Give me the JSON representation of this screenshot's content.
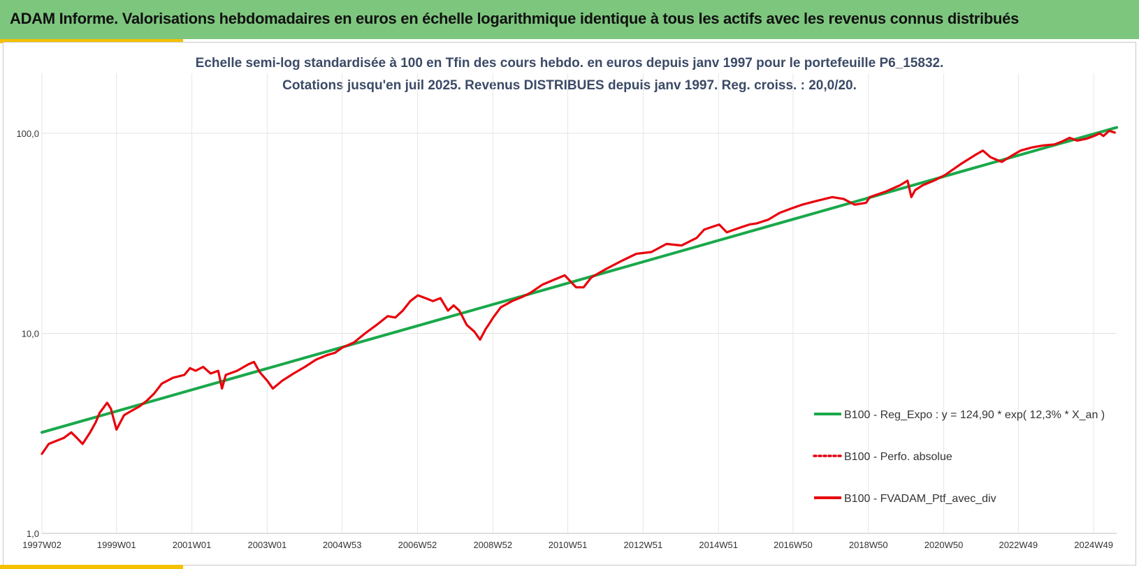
{
  "header": {
    "title": "ADAM Informe. Valorisations hebdomadaires en euros en échelle logarithmique identique à tous les actifs avec les revenus connus distribués"
  },
  "colors": {
    "header_band": "#7dc67e",
    "accent": "#f5c000",
    "regression": "#1aa84b",
    "portfolio": "#e8000b",
    "subtitle": "#3b4a66"
  },
  "chart_data": {
    "type": "line",
    "title_line1": "Echelle semi-log standardisée à 100 en Tfin des cours hebdo. en euros depuis janv 1997 pour le portefeuille P6_15832.",
    "title_line2": "Cotations jusqu'en juil 2025. Revenus DISTRIBUES depuis janv 1997. Reg. croiss. : 20,0/20.",
    "y_scale": "log",
    "ylim": [
      1,
      110
    ],
    "y_ticks": [
      1,
      10,
      100
    ],
    "y_tick_labels": [
      "1,0",
      "10,0",
      "100,0"
    ],
    "xlim": [
      1997.02,
      2025.55
    ],
    "x_ticks": [
      1997.02,
      1999.0,
      2001.0,
      2003.0,
      2004.99,
      2006.99,
      2008.99,
      2010.98,
      2012.98,
      2014.98,
      2016.96,
      2018.96,
      2020.96,
      2022.94,
      2024.94
    ],
    "x_tick_labels": [
      "1997W02",
      "1999W01",
      "2001W01",
      "2003W01",
      "2004W53",
      "2006W52",
      "2008W52",
      "2010W51",
      "2012W51",
      "2014W51",
      "2016W50",
      "2018W50",
      "2020W50",
      "2022W49",
      "2024W49"
    ],
    "grid": true,
    "legend_position": "bottom-right",
    "series": [
      {
        "name": "B100 - Reg_Expo : y = 124,90 * exp( 12,3% *  X_an )",
        "style": "solid",
        "color": "#1aa84b",
        "x": [
          1997.02,
          2025.55
        ],
        "y": [
          3.2,
          107
        ]
      },
      {
        "name": "B100 - Perfo. absolue",
        "style": "dotted",
        "color": "#e8000b",
        "x": [],
        "y": []
      },
      {
        "name": "B100 - FVADAM_Ptf_avec_div",
        "style": "solid",
        "color": "#e8000b",
        "x": [
          1997.02,
          1997.2,
          1997.4,
          1997.6,
          1997.8,
          1997.95,
          1998.1,
          1998.3,
          1998.45,
          1998.55,
          1998.75,
          1998.85,
          1999.0,
          1999.2,
          1999.4,
          1999.6,
          1999.8,
          2000.0,
          2000.2,
          2000.5,
          2000.8,
          2000.95,
          2001.1,
          2001.3,
          2001.5,
          2001.7,
          2001.8,
          2001.9,
          2002.2,
          2002.5,
          2002.65,
          2002.8,
          2003.0,
          2003.15,
          2003.4,
          2003.7,
          2004.0,
          2004.3,
          2004.6,
          2004.8,
          2005.0,
          2005.3,
          2005.6,
          2005.9,
          2006.2,
          2006.4,
          2006.6,
          2006.8,
          2007.0,
          2007.2,
          2007.4,
          2007.6,
          2007.8,
          2007.95,
          2008.1,
          2008.3,
          2008.5,
          2008.65,
          2008.8,
          2008.9,
          2009.0,
          2009.2,
          2009.5,
          2009.8,
          2010.0,
          2010.3,
          2010.6,
          2010.9,
          2011.2,
          2011.4,
          2011.6,
          2011.8,
          2012.0,
          2012.4,
          2012.8,
          2013.2,
          2013.6,
          2014.0,
          2014.4,
          2014.6,
          2014.8,
          2015.0,
          2015.2,
          2015.4,
          2015.6,
          2015.8,
          2016.0,
          2016.3,
          2016.6,
          2016.9,
          2017.2,
          2017.6,
          2018.0,
          2018.3,
          2018.6,
          2018.9,
          2019.0,
          2019.4,
          2019.8,
          2020.0,
          2020.1,
          2020.2,
          2020.4,
          2020.7,
          2021.0,
          2021.4,
          2021.8,
          2022.0,
          2022.2,
          2022.5,
          2022.8,
          2023.0,
          2023.3,
          2023.6,
          2023.9,
          2024.1,
          2024.3,
          2024.5,
          2024.75,
          2024.95,
          2025.1,
          2025.2,
          2025.35,
          2025.5
        ],
        "y": [
          2.5,
          2.8,
          2.9,
          3.0,
          3.2,
          3.0,
          2.8,
          3.2,
          3.6,
          4.0,
          4.5,
          4.2,
          3.3,
          3.9,
          4.1,
          4.3,
          4.6,
          5.0,
          5.6,
          6.0,
          6.2,
          6.7,
          6.5,
          6.8,
          6.3,
          6.5,
          5.3,
          6.2,
          6.5,
          7.0,
          7.2,
          6.4,
          5.8,
          5.3,
          5.8,
          6.3,
          6.8,
          7.4,
          7.8,
          8.0,
          8.5,
          9.0,
          10.0,
          11.0,
          12.2,
          12.0,
          13.0,
          14.5,
          15.5,
          15.0,
          14.5,
          15.0,
          13.0,
          13.8,
          13.0,
          11.0,
          10.2,
          9.3,
          10.5,
          11.2,
          12.0,
          13.5,
          14.5,
          15.3,
          16.0,
          17.5,
          18.5,
          19.5,
          17.0,
          17.0,
          19.0,
          20.0,
          21.0,
          23.0,
          25.0,
          25.5,
          28.0,
          27.5,
          30.0,
          33.0,
          34.0,
          35.0,
          32.0,
          33.0,
          34.0,
          35.0,
          35.5,
          37.0,
          40.0,
          42.0,
          44.0,
          46.0,
          48.0,
          47.0,
          44.0,
          45.0,
          48.0,
          51.0,
          55.0,
          58.0,
          48.0,
          52.0,
          55.0,
          58.0,
          62.0,
          70.0,
          78.0,
          82.0,
          76.0,
          72.0,
          78.0,
          82.0,
          85.0,
          87.0,
          88.0,
          91.0,
          95.0,
          92.0,
          94.0,
          97.0,
          100.0,
          97.0,
          103.0,
          101.0
        ]
      }
    ]
  }
}
